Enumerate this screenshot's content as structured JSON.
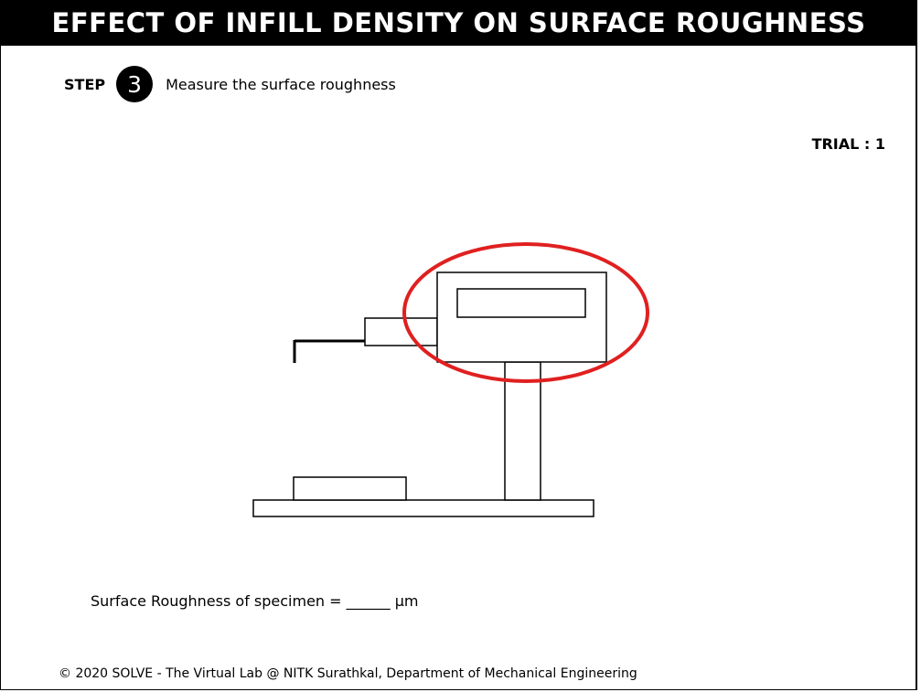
{
  "header": {
    "title": "EFFECT OF INFILL DENSITY ON SURFACE ROUGHNESS"
  },
  "step": {
    "label": "STEP",
    "number": "3",
    "instruction": "Measure the surface roughness"
  },
  "trial": {
    "text": "TRIAL : 1"
  },
  "result": {
    "text": "Surface Roughness of specimen = ______ µm"
  },
  "footer": {
    "text": "© 2020 SOLVE - The Virtual Lab @ NITK Surathkal, Department of Mechanical Engineering"
  },
  "colors": {
    "highlight": "#e02020",
    "title_bg": "#000000"
  }
}
